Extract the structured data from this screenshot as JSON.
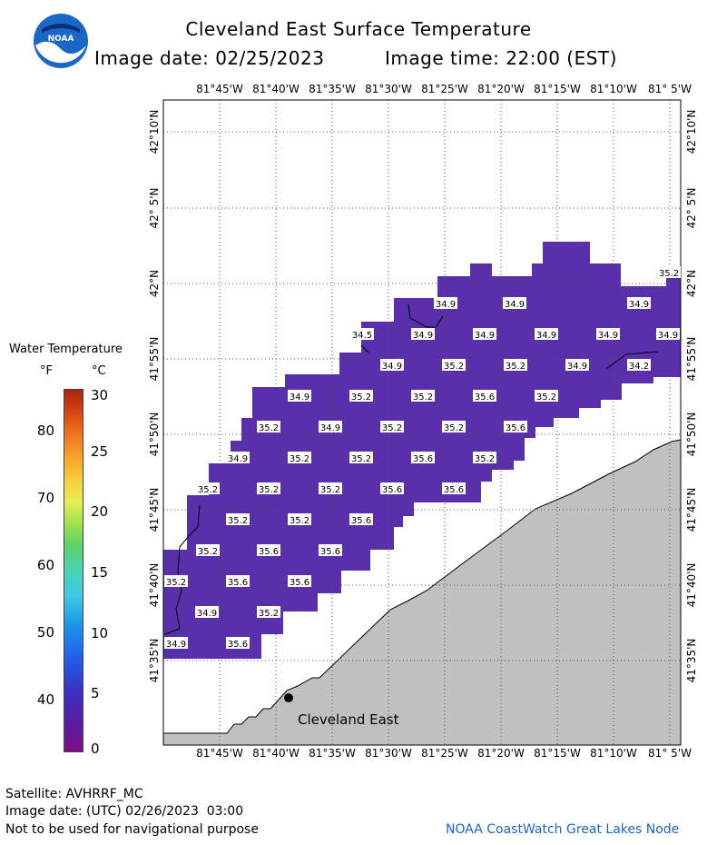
{
  "header": {
    "title": "Cleveland East Surface Temperature",
    "image_date": "Image date: 02/25/2023",
    "image_time": "Image time: 22:00 (EST)",
    "logo_text": "NOAA"
  },
  "map": {
    "lon_labels": [
      "81°45'W",
      "81°40'W",
      "81°35'W",
      "81°30'W",
      "81°25'W",
      "81°20'W",
      "81°15'W",
      "81°10'W",
      "81° 5'W"
    ],
    "lat_labels": [
      "42°10'N",
      "42° 5'N",
      "42°N",
      "41°55'N",
      "41°50'N",
      "41°45'N",
      "41°40'N",
      "41°35'N"
    ],
    "station_label": "Cleveland East",
    "colors": {
      "water": "#5a2fac",
      "land": "#c0c0c0",
      "grid": "#555555"
    },
    "temps": [
      {
        "v": "35.2"
      },
      {
        "v": "34.9"
      },
      {
        "v": "34.9"
      },
      {
        "v": "34.9"
      },
      {
        "v": "34.5"
      },
      {
        "v": "34.9"
      },
      {
        "v": "34.9"
      },
      {
        "v": "34.9"
      },
      {
        "v": "34.9"
      },
      {
        "v": "34.9"
      },
      {
        "v": "34.9"
      },
      {
        "v": "35.2"
      },
      {
        "v": "35.2"
      },
      {
        "v": "34.9"
      },
      {
        "v": "34.2"
      },
      {
        "v": "34.9"
      },
      {
        "v": "35.2"
      },
      {
        "v": "35.2"
      },
      {
        "v": "35.6"
      },
      {
        "v": "35.2"
      },
      {
        "v": "35.2"
      },
      {
        "v": "34.9"
      },
      {
        "v": "35.2"
      },
      {
        "v": "35.2"
      },
      {
        "v": "35.6"
      },
      {
        "v": "34.9"
      },
      {
        "v": "35.2"
      },
      {
        "v": "35.2"
      },
      {
        "v": "35.6"
      },
      {
        "v": "35.2"
      },
      {
        "v": "35.2"
      },
      {
        "v": "35.2"
      },
      {
        "v": "35.2"
      },
      {
        "v": "35.6"
      },
      {
        "v": "35.6"
      },
      {
        "v": "35.2"
      },
      {
        "v": "35.2"
      },
      {
        "v": "35.6"
      },
      {
        "v": "35.2"
      },
      {
        "v": "35.6"
      },
      {
        "v": "35.6"
      },
      {
        "v": "35.2"
      },
      {
        "v": "35.6"
      },
      {
        "v": "35.6"
      },
      {
        "v": "34.9"
      },
      {
        "v": "35.2"
      },
      {
        "v": "34.9"
      },
      {
        "v": "35.6"
      }
    ]
  },
  "legend": {
    "title": "Water Temperature",
    "unit_f": "°F",
    "unit_c": "°C",
    "f_ticks": [
      "80",
      "70",
      "60",
      "50",
      "40"
    ],
    "c_ticks": [
      "30",
      "25",
      "20",
      "15",
      "10",
      "5",
      "0"
    ]
  },
  "footer": {
    "satellite": "Satellite: AVHRRF_MC",
    "utc_date": "Image date: (UTC) 02/26/2023  03:00",
    "disclaimer": "Not to be used for navigational purpose",
    "credit": "NOAA CoastWatch Great Lakes Node"
  }
}
